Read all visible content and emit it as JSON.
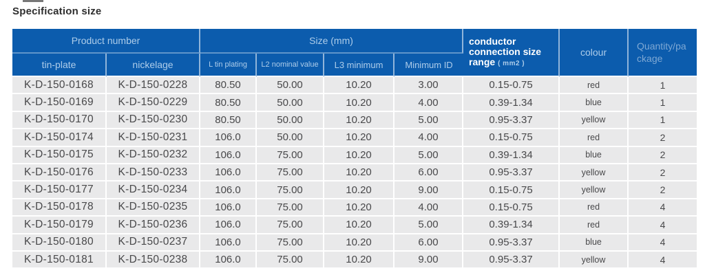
{
  "title": "Specification size",
  "colors": {
    "header_background": "#0c5cad",
    "header_text": "#aecdea",
    "conductor_header_text": "#ffffff",
    "body_row_background": "#e9e9ea",
    "body_text": "#48484a",
    "divider": "#ffffff",
    "page_background": "#ffffff",
    "title_text": "#2e2e2e"
  },
  "table": {
    "groups": {
      "product_number": "Product number",
      "size": "Size (mm)",
      "conductor_label": "conductor connection size range",
      "conductor_unit": "( mm2 )",
      "colour": "colour",
      "quantity": "Quantity/package"
    },
    "subheaders": {
      "tin_plate": "tin-plate",
      "nickelage": "nickelage",
      "l_tin_plating": "L tin plating",
      "l2_nominal_value": "L2 nominal value",
      "l3_minimum": "L3 minimum",
      "minimum_id": "Minimum ID"
    },
    "rows": [
      [
        "K-D-150-0168",
        "K-D-150-0228",
        "80.50",
        "50.00",
        "10.20",
        "3.00",
        "0.15-0.75",
        "red",
        "1"
      ],
      [
        "K-D-150-0169",
        "K-D-150-0229",
        "80.50",
        "50.00",
        "10.20",
        "4.00",
        "0.39-1.34",
        "blue",
        "1"
      ],
      [
        "K-D-150-0170",
        "K-D-150-0230",
        "80.50",
        "50.00",
        "10.20",
        "5.00",
        "0.95-3.37",
        "yellow",
        "1"
      ],
      [
        "K-D-150-0174",
        "K-D-150-0231",
        "106.0",
        "50.00",
        "10.20",
        "4.00",
        "0.15-0.75",
        "red",
        "2"
      ],
      [
        "K-D-150-0175",
        "K-D-150-0232",
        "106.0",
        "75.00",
        "10.20",
        "5.00",
        "0.39-1.34",
        "blue",
        "2"
      ],
      [
        "K-D-150-0176",
        "K-D-150-0233",
        "106.0",
        "75.00",
        "10.20",
        "6.00",
        "0.95-3.37",
        "yellow",
        "2"
      ],
      [
        "K-D-150-0177",
        "K-D-150-0234",
        "106.0",
        "75.00",
        "10.20",
        "9.00",
        "0.15-0.75",
        "yellow",
        "2"
      ],
      [
        "K-D-150-0178",
        "K-D-150-0235",
        "106.0",
        "75.00",
        "10.20",
        "4.00",
        "0.15-0.75",
        "red",
        "4"
      ],
      [
        "K-D-150-0179",
        "K-D-150-0236",
        "106.0",
        "75.00",
        "10.20",
        "5.00",
        "0.39-1.34",
        "red",
        "4"
      ],
      [
        "K-D-150-0180",
        "K-D-150-0237",
        "106.0",
        "75.00",
        "10.20",
        "6.00",
        "0.95-3.37",
        "blue",
        "4"
      ],
      [
        "K-D-150-0181",
        "K-D-150-0238",
        "106.0",
        "75.00",
        "10.20",
        "9.00",
        "0.95-3.37",
        "yellow",
        "4"
      ]
    ]
  }
}
